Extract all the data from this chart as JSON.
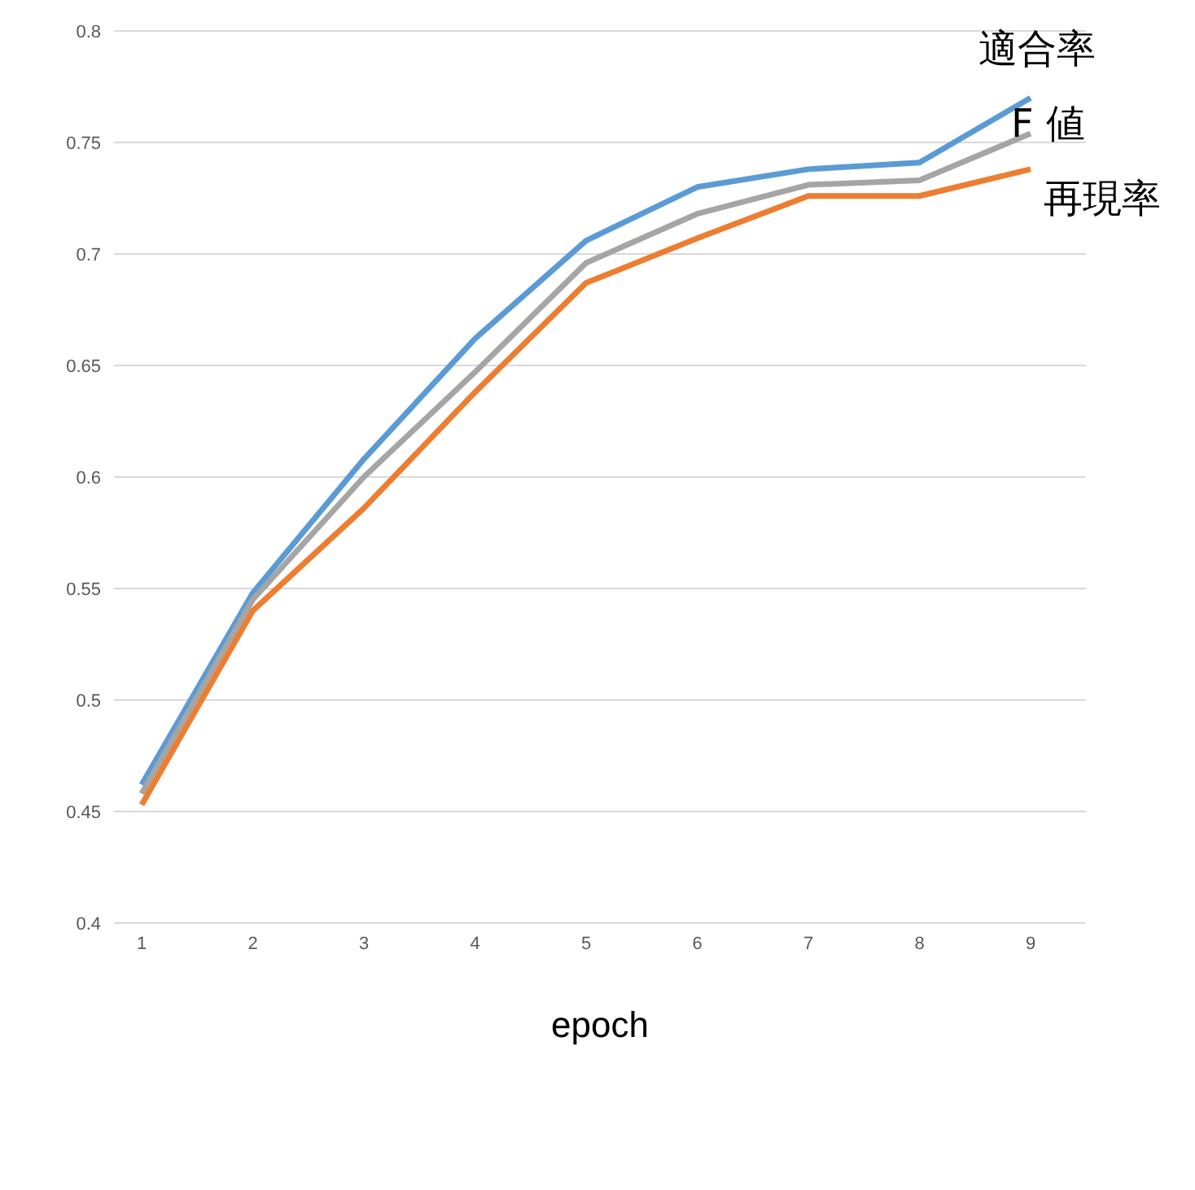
{
  "chart_data": {
    "type": "line",
    "xlabel": "epoch",
    "categories": [
      "1",
      "2",
      "3",
      "4",
      "5",
      "6",
      "7",
      "8",
      "9"
    ],
    "series": [
      {
        "name": "適合率",
        "color": "#5b9bd5",
        "values": [
          0.462,
          0.548,
          0.608,
          0.662,
          0.706,
          0.73,
          0.738,
          0.741,
          0.77
        ]
      },
      {
        "name": "F 値",
        "color": "#a5a5a5",
        "values": [
          0.458,
          0.545,
          0.6,
          0.647,
          0.696,
          0.718,
          0.731,
          0.733,
          0.754
        ]
      },
      {
        "name": "再現率",
        "color": "#ed7d31",
        "values": [
          0.453,
          0.54,
          0.586,
          0.638,
          0.687,
          0.707,
          0.726,
          0.726,
          0.738
        ]
      }
    ],
    "ylim": [
      0.4,
      0.8
    ],
    "yticks": [
      0.4,
      0.45,
      0.5,
      0.55,
      0.6,
      0.65,
      0.7,
      0.75,
      0.8
    ],
    "grid": "y",
    "legend": false,
    "marker": "none",
    "line_style": "solid"
  }
}
